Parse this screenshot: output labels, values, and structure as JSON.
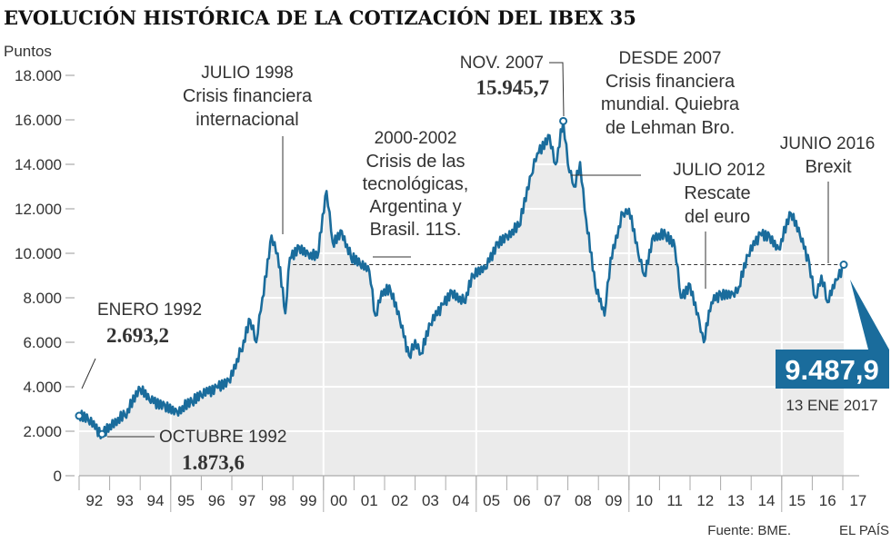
{
  "chart_data": {
    "type": "area",
    "title": "EVOLUCIÓN HISTÓRICA DE LA COTIZACIÓN DEL IBEX 35",
    "ylabel": "Puntos",
    "ylim": [
      0,
      18000
    ],
    "xlim": [
      1992,
      2017.1
    ],
    "yticks": [
      0,
      2000,
      4000,
      6000,
      8000,
      10000,
      12000,
      14000,
      16000,
      18000
    ],
    "ytick_labels": [
      "0",
      "2.000",
      "4.000",
      "6.000",
      "8.000",
      "10.000",
      "12.000",
      "14.000",
      "16.000",
      "18.000"
    ],
    "xtick_labels": [
      "92",
      "93",
      "94",
      "95",
      "96",
      "97",
      "98",
      "99",
      "00",
      "01",
      "02",
      "03",
      "04",
      "05",
      "06",
      "07",
      "08",
      "09",
      "10",
      "11",
      "12",
      "13",
      "14",
      "15",
      "16",
      "17"
    ],
    "reference_line": 9487.9,
    "series": [
      {
        "name": "IBEX 35",
        "color": "#1a6c9c",
        "x": [
          1992.0,
          1992.3,
          1992.75,
          1993.0,
          1993.5,
          1994.0,
          1994.3,
          1994.8,
          1995.2,
          1995.7,
          1996.0,
          1996.5,
          1996.9,
          1997.3,
          1997.6,
          1997.8,
          1998.0,
          1998.3,
          1998.5,
          1998.75,
          1998.9,
          1999.2,
          1999.5,
          1999.8,
          2000.1,
          2000.3,
          2000.6,
          2000.9,
          2001.2,
          2001.5,
          2001.7,
          2001.9,
          2002.2,
          2002.5,
          2002.8,
          2003.0,
          2003.2,
          2003.5,
          2003.9,
          2004.2,
          2004.6,
          2004.9,
          2005.3,
          2005.7,
          2006.0,
          2006.4,
          2006.8,
          2007.0,
          2007.4,
          2007.6,
          2007.85,
          2008.0,
          2008.2,
          2008.4,
          2008.6,
          2008.9,
          2009.2,
          2009.4,
          2009.8,
          2010.0,
          2010.3,
          2010.5,
          2010.8,
          2011.2,
          2011.5,
          2011.7,
          2012.0,
          2012.3,
          2012.45,
          2012.7,
          2013.0,
          2013.4,
          2013.6,
          2013.9,
          2014.3,
          2014.6,
          2014.9,
          2015.3,
          2015.6,
          2015.9,
          2016.1,
          2016.3,
          2016.5,
          2016.8,
          2017.03
        ],
        "values": [
          2693.2,
          2500,
          1873.6,
          2300,
          2700,
          3900,
          3400,
          3200,
          2900,
          3300,
          3600,
          4000,
          4300,
          5600,
          7000,
          6000,
          8000,
          10800,
          10000,
          7300,
          9800,
          10300,
          10000,
          9800,
          12800,
          10500,
          11000,
          9800,
          9500,
          9200,
          7200,
          8300,
          8300,
          7000,
          5400,
          6100,
          5500,
          6800,
          7700,
          8300,
          7800,
          9000,
          9300,
          10500,
          10800,
          11200,
          13500,
          14500,
          15300,
          14000,
          15945.7,
          14000,
          13000,
          14100,
          11500,
          8500,
          7200,
          9800,
          11800,
          12000,
          10000,
          9000,
          10800,
          10800,
          10300,
          8000,
          8600,
          7000,
          6000,
          7800,
          8200,
          8200,
          8500,
          9900,
          10900,
          10800,
          10200,
          11800,
          10800,
          9600,
          8000,
          9000,
          7800,
          8800,
          9487.9
        ]
      }
    ],
    "annotations": {
      "jan92": {
        "label": "ENERO 1992",
        "value": "2.693,2"
      },
      "oct92": {
        "label": "OCTUBRE 1992",
        "value": "1.873,6"
      },
      "jul98": {
        "label": "JULIO 1998",
        "line1": "Crisis financiera",
        "line2": "internacional"
      },
      "y2000": {
        "label": "2000-2002",
        "line1": "Crisis de las",
        "line2": "tecnológicas,",
        "line3": "Argentina y",
        "line4": "Brasil. 11S."
      },
      "nov07": {
        "label": "NOV. 2007",
        "value": "15.945,7"
      },
      "since07": {
        "label": "DESDE 2007",
        "line1": "Crisis financiera",
        "line2": "mundial. Quiebra",
        "line3": "de Lehman Bro."
      },
      "jul12": {
        "label": "JULIO 2012",
        "line1": "Rescate",
        "line2": "del euro"
      },
      "jun16": {
        "label": "JUNIO 2016",
        "line1": "Brexit"
      },
      "last": {
        "value": "9.487,9",
        "date": "13 ENE 2017"
      }
    },
    "source": "Fuente: BME.",
    "brand": "EL PAÍS"
  }
}
